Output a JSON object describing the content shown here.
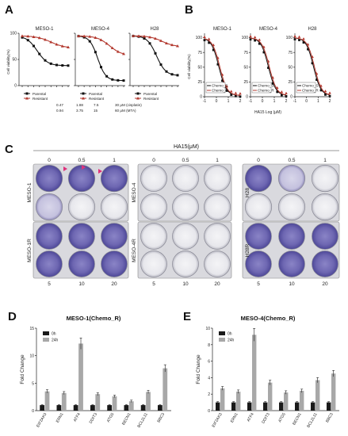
{
  "panels": {
    "A": {
      "label": "A",
      "sub": [
        {
          "title": "MESO-1",
          "ylabel": "Cell viability(%)",
          "legend": [
            "Parental",
            "Resistant"
          ]
        },
        {
          "title": "MESO-4",
          "legend": [
            "Parental",
            "Resistant"
          ]
        },
        {
          "title": "H28",
          "legend": [
            "Parental",
            "Resistant"
          ]
        }
      ],
      "ticks": [
        "0",
        "50",
        "100"
      ],
      "conc_row1": [
        "0.47",
        "1.88",
        "7.5",
        "30 μM (cisplatin)"
      ],
      "conc_row2": [
        "0.94",
        "3.75",
        "15",
        "60 μM (MTA)"
      ]
    },
    "B": {
      "label": "B",
      "sub": [
        {
          "title": "MESO-1",
          "ylabel": "Cell viability(%)",
          "legend": [
            "Chemo_S",
            "Chemo_R"
          ]
        },
        {
          "title": "MESO-4",
          "legend": [
            "Chemo_S",
            "Chemo_R"
          ]
        },
        {
          "title": "H28",
          "legend": [
            "Chemo_S",
            "Chemo_R"
          ]
        }
      ],
      "yticks": [
        "0",
        "25",
        "50",
        "75",
        "100"
      ],
      "xticks": [
        "-1",
        "0",
        "1",
        "2"
      ],
      "xlabel": "HA15 Log (μM)"
    },
    "C": {
      "label": "C",
      "header": "HA15(μM)",
      "top_ticks": [
        "0",
        "0.5",
        "1"
      ],
      "bottom_ticks": [
        "5",
        "10",
        "20"
      ],
      "rows": [
        {
          "upper": "MESO-1",
          "lower": "MESO-1R"
        },
        {
          "upper": "MESO-4",
          "lower": "MESO-4R"
        },
        {
          "upper": "H28",
          "lower": "H28R"
        }
      ]
    },
    "D": {
      "label": "D",
      "title": "MESO-1(Chemo_R)",
      "ylabel": "Fold Change",
      "legend": [
        "0h",
        "24h"
      ]
    },
    "E": {
      "label": "E",
      "title": "MESO-4(Chemo_R)",
      "ylabel": "Fold Change",
      "legend": [
        "0h",
        "24h"
      ]
    }
  },
  "chart_data": [
    {
      "type": "bar",
      "title": "MESO-1(Chemo_R)",
      "ylabel": "Fold Change",
      "categories": [
        "EIF2AK3",
        "ERN1",
        "ATF4",
        "DDIT3",
        "ATG5",
        "BECN1",
        "BCL2L11",
        "BBC3"
      ],
      "ylim": [
        0,
        15
      ],
      "yticks": [
        "0",
        "5",
        "10",
        "15"
      ],
      "series": [
        {
          "name": "0h",
          "values": [
            1,
            1,
            1,
            1,
            1,
            1,
            1,
            1
          ],
          "color": "#1a1a1a"
        },
        {
          "name": "24h",
          "values": [
            3.5,
            3.2,
            12.2,
            3.0,
            2.6,
            1.7,
            3.4,
            7.7
          ],
          "color": "#a8a8a8"
        }
      ]
    },
    {
      "type": "bar",
      "title": "MESO-4(Chemo_R)",
      "ylabel": "Fold Change",
      "categories": [
        "EIF2AK3",
        "ERN1",
        "ATF4",
        "DDIT3",
        "ATG5",
        "BECN1",
        "BCL2L11",
        "BBC3"
      ],
      "ylim": [
        0,
        10
      ],
      "yticks": [
        "0",
        "2",
        "4",
        "6",
        "8",
        "10"
      ],
      "series": [
        {
          "name": "0h",
          "values": [
            1,
            1,
            1,
            1,
            1,
            1,
            1,
            1
          ],
          "color": "#1a1a1a"
        },
        {
          "name": "24h",
          "values": [
            2.7,
            2.3,
            9.2,
            3.4,
            2.2,
            2.4,
            3.7,
            4.5
          ],
          "color": "#a8a8a8"
        }
      ]
    }
  ]
}
